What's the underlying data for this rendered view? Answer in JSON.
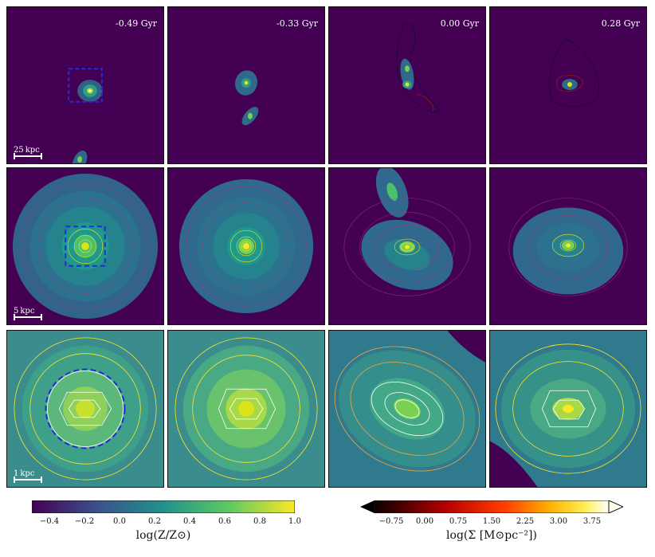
{
  "rows": [
    {
      "id": "wide",
      "scalebar": "25 kpc",
      "panels": [
        {
          "time": "-0.49 Gyr"
        },
        {
          "time": "-0.33 Gyr"
        },
        {
          "time": "0.00 Gyr"
        },
        {
          "time": "0.28 Gyr"
        }
      ]
    },
    {
      "id": "mid",
      "scalebar": "5 kpc",
      "panels": [
        {},
        {},
        {},
        {}
      ]
    },
    {
      "id": "zoom",
      "scalebar": "1 kpc",
      "panels": [
        {},
        {},
        {},
        {}
      ]
    }
  ],
  "colorbar_metallicity": {
    "label": "log(Z/Z⊙)",
    "ticks": [
      "−0.4",
      "−0.2",
      "0.0",
      "0.2",
      "0.4",
      "0.6",
      "0.8",
      "1.0"
    ],
    "range": [
      -0.5,
      1.0
    ],
    "colormap": "viridis"
  },
  "colorbar_density": {
    "label": "log(Σ [M⊙pc⁻²])",
    "ticks": [
      "−0.75",
      "0.00",
      "0.75",
      "1.50",
      "2.25",
      "3.00",
      "3.75"
    ],
    "range": [
      -1.125,
      4.125
    ],
    "colormap": "hot",
    "extend": "both"
  },
  "colors": {
    "background": "#440154",
    "selection_box": "#1f2fd6"
  }
}
